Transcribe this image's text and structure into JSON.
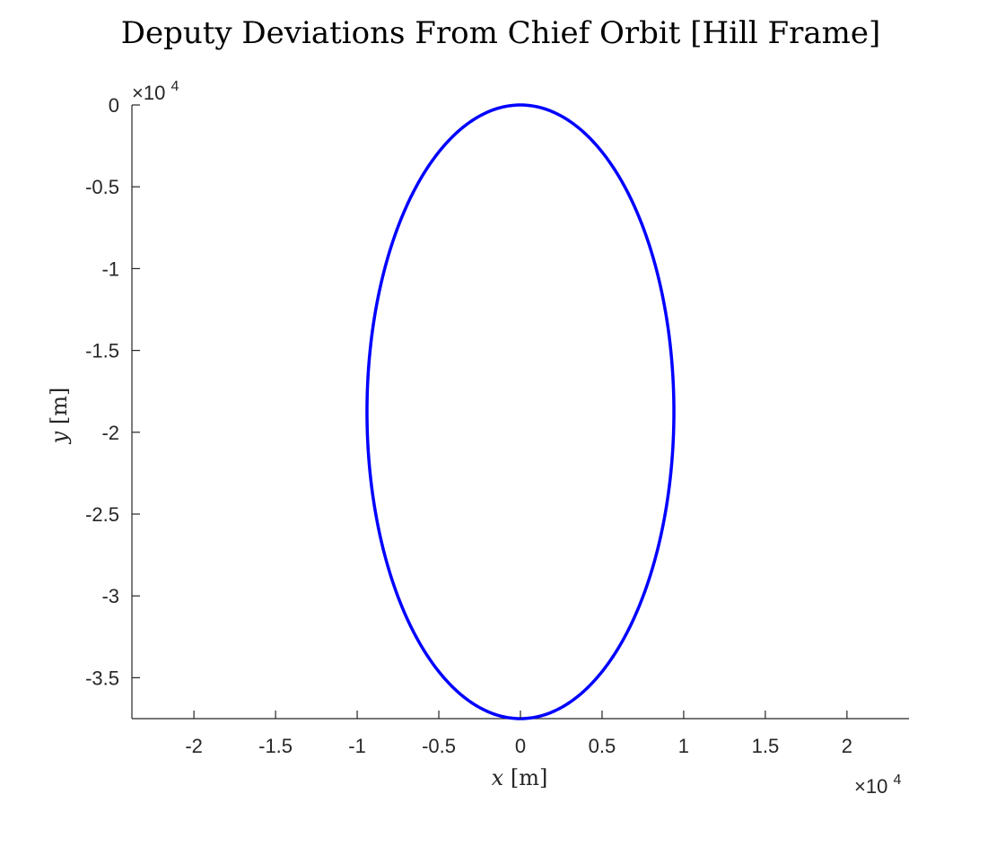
{
  "chart_data": {
    "type": "line",
    "title": "Deputy Deviations From Chief Orbit [Hill Frame]",
    "xlabel_var": "x",
    "xlabel_unit": "[m]",
    "ylabel_var": "y",
    "ylabel_unit": "[m]",
    "x_exponent_base": "×10",
    "x_exponent_power": "4",
    "y_exponent_base": "×10",
    "y_exponent_power": "4",
    "xlim": [
      -23800,
      23800
    ],
    "ylim": [
      -37500,
      0
    ],
    "xticks": [
      -20000,
      -15000,
      -10000,
      -5000,
      0,
      5000,
      10000,
      15000,
      20000
    ],
    "xtick_labels": [
      "-2",
      "-1.5",
      "-1",
      "-0.5",
      "0",
      "0.5",
      "1",
      "1.5",
      "2"
    ],
    "yticks": [
      0,
      -5000,
      -10000,
      -15000,
      -20000,
      -25000,
      -30000,
      -35000
    ],
    "ytick_labels": [
      "0",
      "-0.5",
      "-1",
      "-1.5",
      "-2",
      "-2.5",
      "-3",
      "-3.5"
    ],
    "grid": false,
    "series": [
      {
        "color": "#0000ff",
        "shape": "ellipse",
        "center": [
          0,
          -18750
        ],
        "semi_axis_x": 9400,
        "semi_axis_y": 18750
      }
    ]
  }
}
